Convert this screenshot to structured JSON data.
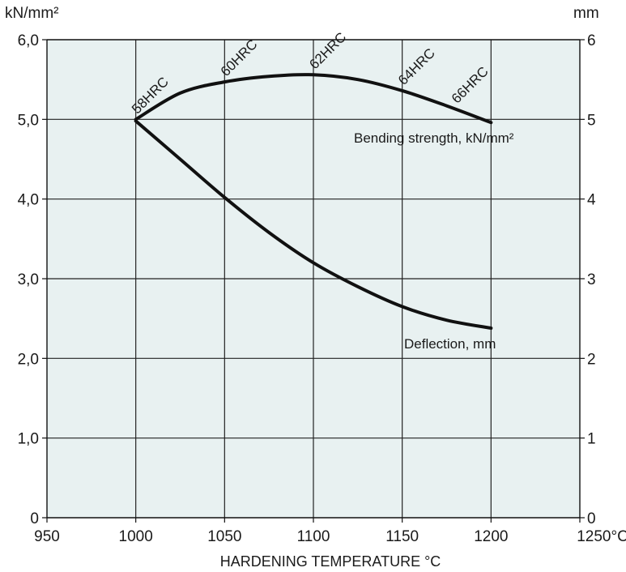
{
  "chart_data": {
    "type": "line",
    "xlabel": "HARDENING TEMPERATURE °C",
    "x_ticks": [
      "950",
      "1000",
      "1050",
      "1100",
      "1150",
      "1200",
      "1250°C"
    ],
    "xlim": [
      950,
      1250
    ],
    "left_axis": {
      "unit": "kN/mm²",
      "ticks": [
        "0",
        "1,0",
        "2,0",
        "3,0",
        "4,0",
        "5,0",
        "6,0"
      ],
      "ylim": [
        0,
        6
      ]
    },
    "right_axis": {
      "unit": "mm",
      "ticks": [
        "0",
        "1",
        "2",
        "3",
        "4",
        "5",
        "6"
      ],
      "ylim": [
        0,
        6
      ]
    },
    "grid": true,
    "background_color": "#e8f1f1",
    "line_color": "#111111",
    "series": [
      {
        "name": "Bending strength, kN/mm²",
        "axis": "left",
        "x": [
          1000,
          1025,
          1050,
          1075,
          1100,
          1125,
          1150,
          1175,
          1200
        ],
        "y": [
          5.0,
          5.33,
          5.47,
          5.54,
          5.56,
          5.5,
          5.36,
          5.17,
          4.96
        ]
      },
      {
        "name": "Deflection, mm",
        "axis": "right",
        "x": [
          1000,
          1025,
          1050,
          1075,
          1100,
          1125,
          1150,
          1175,
          1200
        ],
        "y": [
          4.98,
          4.5,
          4.02,
          3.58,
          3.2,
          2.9,
          2.65,
          2.48,
          2.38
        ]
      }
    ],
    "hrc_labels": [
      {
        "text": "58HRC",
        "x": 1000,
        "y": 5.0
      },
      {
        "text": "60HRC",
        "x": 1050,
        "y": 5.47
      },
      {
        "text": "62HRC",
        "x": 1100,
        "y": 5.56
      },
      {
        "text": "64HRC",
        "x": 1150,
        "y": 5.36
      },
      {
        "text": "66HRC",
        "x": 1180,
        "y": 5.13
      }
    ]
  }
}
